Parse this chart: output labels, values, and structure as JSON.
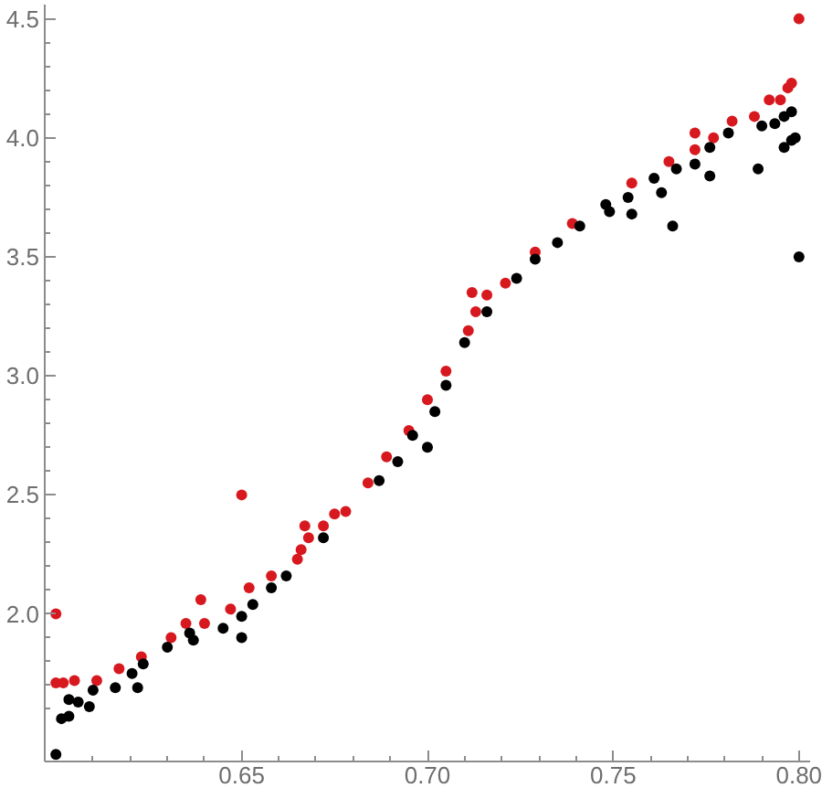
{
  "chart_data": {
    "type": "scatter",
    "marker": "circle",
    "grid": false,
    "xlim": [
      0.597,
      0.803
    ],
    "ylim": [
      1.38,
      4.56
    ],
    "xticks": [
      {
        "value": 0.61,
        "label": null
      },
      {
        "value": 0.62,
        "label": null
      },
      {
        "value": 0.63,
        "label": null
      },
      {
        "value": 0.64,
        "label": null
      },
      {
        "value": 0.65,
        "label": "0.65"
      },
      {
        "value": 0.66,
        "label": null
      },
      {
        "value": 0.67,
        "label": null
      },
      {
        "value": 0.68,
        "label": null
      },
      {
        "value": 0.69,
        "label": null
      },
      {
        "value": 0.7,
        "label": "0.70"
      },
      {
        "value": 0.71,
        "label": null
      },
      {
        "value": 0.72,
        "label": null
      },
      {
        "value": 0.73,
        "label": null
      },
      {
        "value": 0.74,
        "label": null
      },
      {
        "value": 0.75,
        "label": "0.75"
      },
      {
        "value": 0.76,
        "label": null
      },
      {
        "value": 0.77,
        "label": null
      },
      {
        "value": 0.78,
        "label": null
      },
      {
        "value": 0.79,
        "label": null
      },
      {
        "value": 0.8,
        "label": "0.80"
      }
    ],
    "yticks": [
      {
        "value": 1.6,
        "label": null
      },
      {
        "value": 1.7,
        "label": null
      },
      {
        "value": 1.8,
        "label": null
      },
      {
        "value": 1.9,
        "label": null
      },
      {
        "value": 2.0,
        "label": "2.0"
      },
      {
        "value": 2.1,
        "label": null
      },
      {
        "value": 2.2,
        "label": null
      },
      {
        "value": 2.3,
        "label": null
      },
      {
        "value": 2.4,
        "label": null
      },
      {
        "value": 2.5,
        "label": "2.5"
      },
      {
        "value": 2.6,
        "label": null
      },
      {
        "value": 2.7,
        "label": null
      },
      {
        "value": 2.8,
        "label": null
      },
      {
        "value": 2.9,
        "label": null
      },
      {
        "value": 3.0,
        "label": "3.0"
      },
      {
        "value": 3.1,
        "label": null
      },
      {
        "value": 3.2,
        "label": null
      },
      {
        "value": 3.3,
        "label": null
      },
      {
        "value": 3.4,
        "label": null
      },
      {
        "value": 3.5,
        "label": "3.5"
      },
      {
        "value": 3.6,
        "label": null
      },
      {
        "value": 3.7,
        "label": null
      },
      {
        "value": 3.8,
        "label": null
      },
      {
        "value": 3.9,
        "label": null
      },
      {
        "value": 4.0,
        "label": "4.0"
      },
      {
        "value": 4.1,
        "label": null
      },
      {
        "value": 4.2,
        "label": null
      },
      {
        "value": 4.3,
        "label": null
      },
      {
        "value": 4.4,
        "label": null
      },
      {
        "value": 4.5,
        "label": "4.5"
      }
    ],
    "series": [
      {
        "color": "#d7191f",
        "x": [
          0.6,
          0.6,
          0.602,
          0.605,
          0.611,
          0.617,
          0.623,
          0.631,
          0.635,
          0.639,
          0.64,
          0.647,
          0.65,
          0.652,
          0.658,
          0.665,
          0.666,
          0.667,
          0.668,
          0.672,
          0.675,
          0.678,
          0.684,
          0.689,
          0.695,
          0.7,
          0.705,
          0.711,
          0.712,
          0.713,
          0.716,
          0.721,
          0.729,
          0.739,
          0.755,
          0.765,
          0.772,
          0.772,
          0.777,
          0.782,
          0.788,
          0.792,
          0.795,
          0.797,
          0.798,
          0.8
        ],
        "values": [
          2.0,
          1.71,
          1.71,
          1.72,
          1.72,
          1.77,
          1.82,
          1.9,
          1.96,
          2.06,
          1.96,
          2.02,
          2.5,
          2.11,
          2.16,
          2.23,
          2.27,
          2.37,
          2.32,
          2.37,
          2.42,
          2.43,
          2.55,
          2.66,
          2.77,
          2.9,
          3.02,
          3.19,
          3.35,
          3.27,
          3.34,
          3.39,
          3.52,
          3.64,
          3.81,
          3.9,
          3.95,
          4.02,
          4.0,
          4.07,
          4.09,
          4.16,
          4.16,
          4.21,
          4.23,
          4.5
        ]
      },
      {
        "color": "#000000",
        "x": [
          0.6,
          0.6015,
          0.6035,
          0.6035,
          0.606,
          0.609,
          0.61,
          0.616,
          0.6205,
          0.622,
          0.6235,
          0.63,
          0.636,
          0.637,
          0.645,
          0.65,
          0.65,
          0.653,
          0.658,
          0.662,
          0.672,
          0.687,
          0.692,
          0.696,
          0.7,
          0.702,
          0.705,
          0.71,
          0.716,
          0.724,
          0.729,
          0.735,
          0.741,
          0.748,
          0.749,
          0.754,
          0.755,
          0.761,
          0.763,
          0.766,
          0.767,
          0.772,
          0.776,
          0.776,
          0.781,
          0.789,
          0.79,
          0.7935,
          0.796,
          0.796,
          0.798,
          0.798,
          0.799,
          0.8
        ],
        "values": [
          1.41,
          1.56,
          1.57,
          1.64,
          1.63,
          1.61,
          1.68,
          1.69,
          1.75,
          1.69,
          1.79,
          1.86,
          1.92,
          1.89,
          1.94,
          1.99,
          1.9,
          2.04,
          2.11,
          2.16,
          2.32,
          2.56,
          2.64,
          2.75,
          2.7,
          2.85,
          2.96,
          3.14,
          3.27,
          3.41,
          3.49,
          3.56,
          3.63,
          3.72,
          3.69,
          3.75,
          3.68,
          3.83,
          3.77,
          3.63,
          3.87,
          3.89,
          3.84,
          3.96,
          4.02,
          3.87,
          4.05,
          4.06,
          3.96,
          4.09,
          4.11,
          3.99,
          4.0,
          3.5
        ]
      }
    ]
  }
}
